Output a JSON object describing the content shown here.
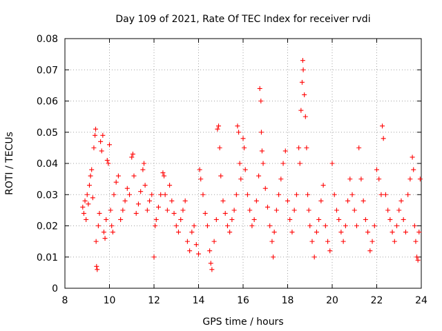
{
  "chart_data": {
    "type": "scatter",
    "title": "Day 109 of 2021, Rate Of TEC Index for receiver rvdi",
    "xlabel": "GPS time / hours",
    "ylabel": "ROTI / TECUs",
    "xlim": [
      8,
      24
    ],
    "ylim": [
      0,
      0.08
    ],
    "x_ticks": [
      "8",
      "10",
      "12",
      "14",
      "16",
      "18",
      "20",
      "22",
      "24"
    ],
    "y_ticks": [
      "0",
      "0.01",
      "0.02",
      "0.03",
      "0.04",
      "0.05",
      "0.06",
      "0.07",
      "0.08"
    ],
    "grid": true,
    "legend": "none",
    "marker": "plus",
    "color": "#ff0000",
    "series": [
      {
        "points": [
          [
            8.8,
            0.026
          ],
          [
            8.85,
            0.024
          ],
          [
            8.9,
            0.028
          ],
          [
            8.95,
            0.022
          ],
          [
            9.0,
            0.03
          ],
          [
            9.05,
            0.027
          ],
          [
            9.1,
            0.033
          ],
          [
            9.15,
            0.036
          ],
          [
            9.2,
            0.038
          ],
          [
            9.25,
            0.029
          ],
          [
            9.3,
            0.045
          ],
          [
            9.35,
            0.049
          ],
          [
            9.38,
            0.051
          ],
          [
            9.4,
            0.015
          ],
          [
            9.42,
            0.007
          ],
          [
            9.45,
            0.006
          ],
          [
            9.5,
            0.02
          ],
          [
            9.55,
            0.024
          ],
          [
            9.6,
            0.047
          ],
          [
            9.65,
            0.044
          ],
          [
            9.7,
            0.049
          ],
          [
            9.75,
            0.018
          ],
          [
            9.8,
            0.016
          ],
          [
            9.85,
            0.022
          ],
          [
            9.9,
            0.041
          ],
          [
            9.95,
            0.04
          ],
          [
            10.0,
            0.046
          ],
          [
            10.05,
            0.025
          ],
          [
            10.1,
            0.02
          ],
          [
            10.15,
            0.018
          ],
          [
            10.2,
            0.03
          ],
          [
            10.3,
            0.034
          ],
          [
            10.4,
            0.036
          ],
          [
            10.5,
            0.022
          ],
          [
            10.6,
            0.025
          ],
          [
            10.7,
            0.028
          ],
          [
            10.8,
            0.032
          ],
          [
            10.9,
            0.03
          ],
          [
            11.0,
            0.042
          ],
          [
            11.05,
            0.043
          ],
          [
            11.1,
            0.036
          ],
          [
            11.2,
            0.024
          ],
          [
            11.3,
            0.027
          ],
          [
            11.4,
            0.031
          ],
          [
            11.5,
            0.038
          ],
          [
            11.55,
            0.04
          ],
          [
            11.6,
            0.033
          ],
          [
            11.7,
            0.025
          ],
          [
            11.8,
            0.028
          ],
          [
            11.9,
            0.03
          ],
          [
            12.0,
            0.01
          ],
          [
            12.05,
            0.02
          ],
          [
            12.1,
            0.022
          ],
          [
            12.2,
            0.026
          ],
          [
            12.3,
            0.03
          ],
          [
            12.4,
            0.037
          ],
          [
            12.45,
            0.036
          ],
          [
            12.5,
            0.03
          ],
          [
            12.6,
            0.025
          ],
          [
            12.7,
            0.033
          ],
          [
            12.8,
            0.028
          ],
          [
            12.9,
            0.024
          ],
          [
            13.0,
            0.02
          ],
          [
            13.1,
            0.018
          ],
          [
            13.2,
            0.022
          ],
          [
            13.3,
            0.025
          ],
          [
            13.4,
            0.028
          ],
          [
            13.5,
            0.015
          ],
          [
            13.6,
            0.012
          ],
          [
            13.7,
            0.018
          ],
          [
            13.8,
            0.02
          ],
          [
            13.9,
            0.014
          ],
          [
            14.0,
            0.011
          ],
          [
            14.05,
            0.038
          ],
          [
            14.1,
            0.035
          ],
          [
            14.2,
            0.03
          ],
          [
            14.3,
            0.024
          ],
          [
            14.4,
            0.02
          ],
          [
            14.5,
            0.012
          ],
          [
            14.55,
            0.008
          ],
          [
            14.6,
            0.006
          ],
          [
            14.7,
            0.015
          ],
          [
            14.8,
            0.022
          ],
          [
            14.85,
            0.051
          ],
          [
            14.9,
            0.052
          ],
          [
            14.95,
            0.045
          ],
          [
            15.0,
            0.036
          ],
          [
            15.1,
            0.028
          ],
          [
            15.2,
            0.024
          ],
          [
            15.3,
            0.02
          ],
          [
            15.4,
            0.018
          ],
          [
            15.5,
            0.022
          ],
          [
            15.6,
            0.025
          ],
          [
            15.7,
            0.03
          ],
          [
            15.75,
            0.052
          ],
          [
            15.8,
            0.05
          ],
          [
            15.85,
            0.04
          ],
          [
            15.9,
            0.035
          ],
          [
            16.0,
            0.048
          ],
          [
            16.05,
            0.045
          ],
          [
            16.1,
            0.038
          ],
          [
            16.2,
            0.03
          ],
          [
            16.3,
            0.025
          ],
          [
            16.4,
            0.02
          ],
          [
            16.5,
            0.022
          ],
          [
            16.6,
            0.028
          ],
          [
            16.7,
            0.036
          ],
          [
            16.75,
            0.064
          ],
          [
            16.8,
            0.06
          ],
          [
            16.82,
            0.05
          ],
          [
            16.85,
            0.044
          ],
          [
            16.9,
            0.04
          ],
          [
            17.0,
            0.032
          ],
          [
            17.1,
            0.026
          ],
          [
            17.2,
            0.02
          ],
          [
            17.3,
            0.015
          ],
          [
            17.35,
            0.01
          ],
          [
            17.4,
            0.018
          ],
          [
            17.5,
            0.025
          ],
          [
            17.6,
            0.03
          ],
          [
            17.7,
            0.035
          ],
          [
            17.8,
            0.04
          ],
          [
            17.9,
            0.044
          ],
          [
            18.0,
            0.028
          ],
          [
            18.1,
            0.022
          ],
          [
            18.2,
            0.018
          ],
          [
            18.3,
            0.025
          ],
          [
            18.4,
            0.03
          ],
          [
            18.5,
            0.045
          ],
          [
            18.55,
            0.04
          ],
          [
            18.6,
            0.057
          ],
          [
            18.65,
            0.066
          ],
          [
            18.68,
            0.073
          ],
          [
            18.7,
            0.07
          ],
          [
            18.75,
            0.062
          ],
          [
            18.8,
            0.055
          ],
          [
            18.85,
            0.045
          ],
          [
            18.9,
            0.03
          ],
          [
            18.95,
            0.025
          ],
          [
            19.0,
            0.02
          ],
          [
            19.1,
            0.015
          ],
          [
            19.2,
            0.01
          ],
          [
            19.3,
            0.018
          ],
          [
            19.4,
            0.022
          ],
          [
            19.5,
            0.028
          ],
          [
            19.6,
            0.033
          ],
          [
            19.7,
            0.02
          ],
          [
            19.8,
            0.015
          ],
          [
            19.9,
            0.012
          ],
          [
            20.0,
            0.04
          ],
          [
            20.1,
            0.03
          ],
          [
            20.2,
            0.025
          ],
          [
            20.3,
            0.022
          ],
          [
            20.4,
            0.018
          ],
          [
            20.5,
            0.015
          ],
          [
            20.6,
            0.02
          ],
          [
            20.7,
            0.028
          ],
          [
            20.8,
            0.035
          ],
          [
            20.9,
            0.03
          ],
          [
            21.0,
            0.025
          ],
          [
            21.1,
            0.02
          ],
          [
            21.2,
            0.045
          ],
          [
            21.3,
            0.035
          ],
          [
            21.4,
            0.028
          ],
          [
            21.5,
            0.022
          ],
          [
            21.6,
            0.018
          ],
          [
            21.7,
            0.012
          ],
          [
            21.8,
            0.015
          ],
          [
            21.9,
            0.02
          ],
          [
            22.0,
            0.038
          ],
          [
            22.1,
            0.035
          ],
          [
            22.2,
            0.03
          ],
          [
            22.25,
            0.052
          ],
          [
            22.3,
            0.048
          ],
          [
            22.4,
            0.03
          ],
          [
            22.5,
            0.025
          ],
          [
            22.6,
            0.022
          ],
          [
            22.7,
            0.018
          ],
          [
            22.8,
            0.015
          ],
          [
            22.9,
            0.02
          ],
          [
            23.0,
            0.025
          ],
          [
            23.1,
            0.028
          ],
          [
            23.2,
            0.022
          ],
          [
            23.3,
            0.018
          ],
          [
            23.4,
            0.03
          ],
          [
            23.5,
            0.035
          ],
          [
            23.6,
            0.042
          ],
          [
            23.65,
            0.038
          ],
          [
            23.7,
            0.02
          ],
          [
            23.75,
            0.015
          ],
          [
            23.8,
            0.01
          ],
          [
            23.85,
            0.009
          ],
          [
            23.9,
            0.018
          ],
          [
            23.95,
            0.035
          ]
        ]
      }
    ]
  }
}
